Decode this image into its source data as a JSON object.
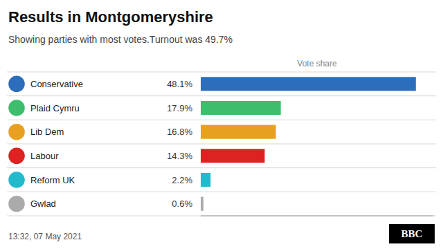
{
  "chart_data": {
    "type": "bar",
    "orientation": "horizontal",
    "title": "Results in Montgomeryshire",
    "subtitle": "Showing parties with most votes.Turnout was 49.7%",
    "xlabel": "Vote share",
    "annotations": [
      "13:32, 07 May 2021",
      "BBC"
    ],
    "categories": [
      "Conservative",
      "Plaid Cymru",
      "Lib Dem",
      "Labour",
      "Reform UK",
      "Gwlad"
    ],
    "values": [
      48.1,
      17.9,
      16.8,
      14.3,
      2.2,
      0.6
    ],
    "value_labels": [
      "48.1%",
      "17.9%",
      "16.8%",
      "14.3%",
      "2.2%",
      "0.6%"
    ],
    "data_labels": true,
    "colors": [
      "#2d6ebc",
      "#3dbe6c",
      "#e8a020",
      "#dd2222",
      "#22bbcc",
      "#aaaaaa"
    ],
    "xlim": [
      0,
      52
    ],
    "tick_labels": false
  }
}
